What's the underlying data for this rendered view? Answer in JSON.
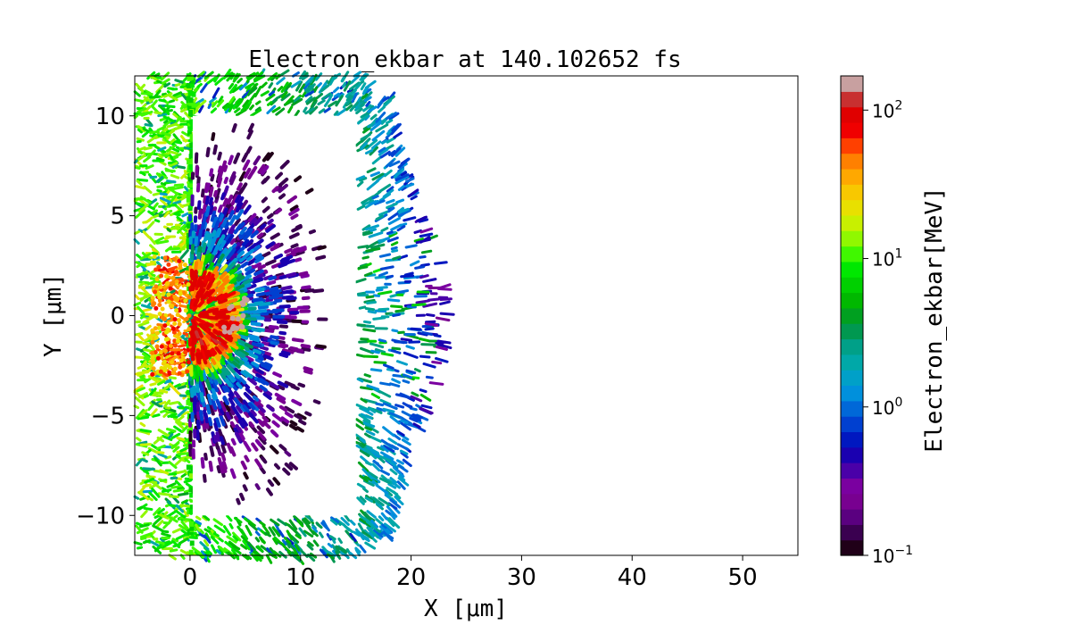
{
  "chart_data": {
    "type": "heatmap",
    "title": "Electron_ekbar at 140.102652 fs",
    "xlabel": "X [μm]",
    "ylabel": "Y [μm]",
    "xlim": [
      -5,
      55
    ],
    "ylim": [
      -12,
      12
    ],
    "xticks": [
      0,
      10,
      20,
      30,
      40,
      50
    ],
    "xtick_labels": [
      "0",
      "10",
      "20",
      "30",
      "40",
      "50"
    ],
    "yticks": [
      -10,
      -5,
      0,
      5,
      10
    ],
    "ytick_labels": [
      "−10",
      "−5",
      "0",
      "5",
      "10"
    ],
    "grid": false,
    "colorbar": {
      "label": "Electron_ekbar[MeV]",
      "scale": "log",
      "range": [
        0.1,
        170
      ],
      "ticks": [
        0.1,
        1,
        10,
        100
      ],
      "tick_labels": [
        {
          "base": "10",
          "exp": "−1"
        },
        {
          "base": "10",
          "exp": "0"
        },
        {
          "base": "10",
          "exp": "1"
        },
        {
          "base": "10",
          "exp": "2"
        }
      ],
      "colors": [
        "#200018",
        "#3a0050",
        "#5a0080",
        "#780090",
        "#7a00a0",
        "#4a00a8",
        "#1a00b0",
        "#0018c0",
        "#0040d0",
        "#0068d8",
        "#0090dc",
        "#00a0c8",
        "#00a8a8",
        "#00a088",
        "#009850",
        "#00a020",
        "#00b800",
        "#00d000",
        "#00e800",
        "#40f800",
        "#90f800",
        "#c8f000",
        "#e8e000",
        "#f8c800",
        "#ffa800",
        "#ff8000",
        "#ff4000",
        "#f00000",
        "#e00000",
        "#c83030",
        "#c8a0a0"
      ]
    },
    "target_outline": {
      "x": [
        0,
        15
      ],
      "y": [
        -10,
        10
      ]
    }
  }
}
